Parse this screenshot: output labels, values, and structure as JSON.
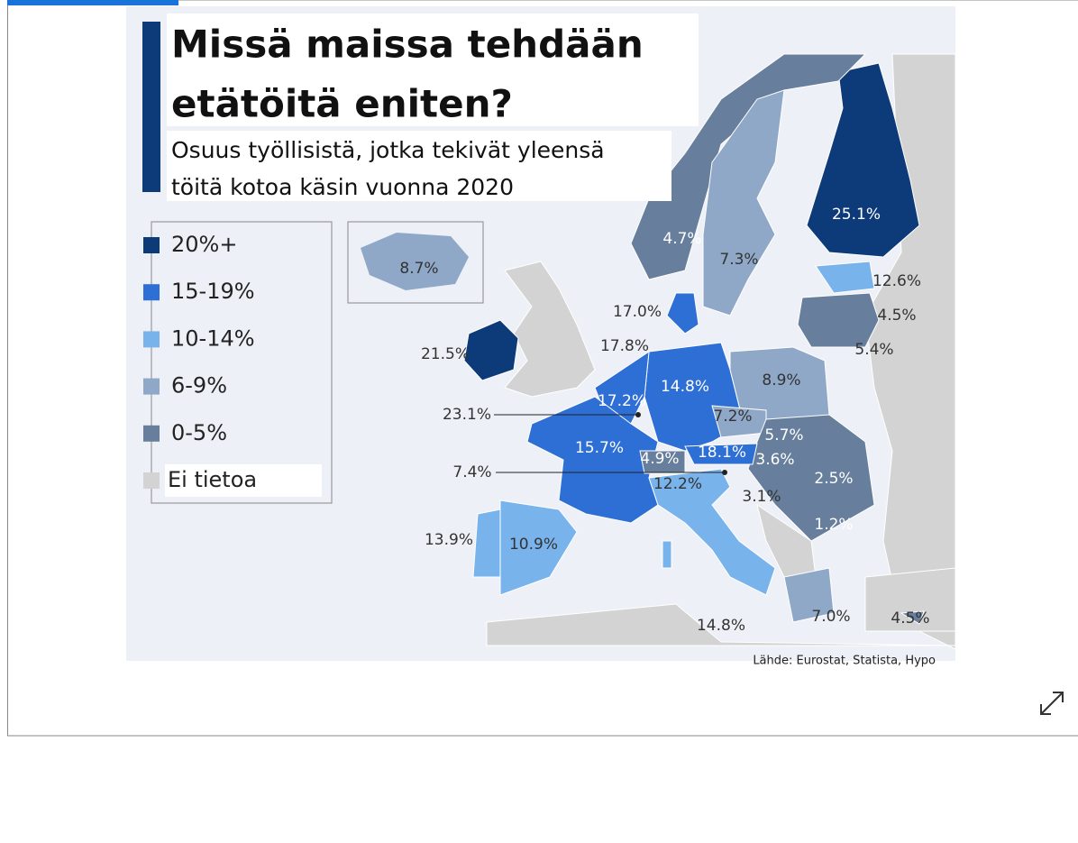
{
  "header": {
    "title_lines": [
      "Missä maissa tehdään",
      "etätöitä eniten?"
    ],
    "subtitle_lines": [
      "Osuus työllisistä, jotka tekivät yleensä",
      "töitä kotoa käsin vuonna 2020"
    ]
  },
  "legend": {
    "items": [
      "20%+",
      "15-19%",
      "10-14%",
      "6-9%",
      "0-5%",
      "Ei tietoa"
    ]
  },
  "map": {
    "labels": [
      "25.1%",
      "4.7%",
      "7.3%",
      "12.6%",
      "4.5%",
      "5.4%",
      "8.7%",
      "17.0%",
      "17.8%",
      "21.5%",
      "14.8%",
      "8.9%",
      "17.2%",
      "23.1%",
      "7.2%",
      "5.7%",
      "15.7%",
      "4.9%",
      "18.1%",
      "3.6%",
      "2.5%",
      "7.4%",
      "12.2%",
      "3.1%",
      "1.2%",
      "13.9%",
      "10.9%",
      "14.8%",
      "7.0%",
      "4.5%"
    ]
  },
  "source": "Lähde: Eurostat, Statista, Hypo"
}
